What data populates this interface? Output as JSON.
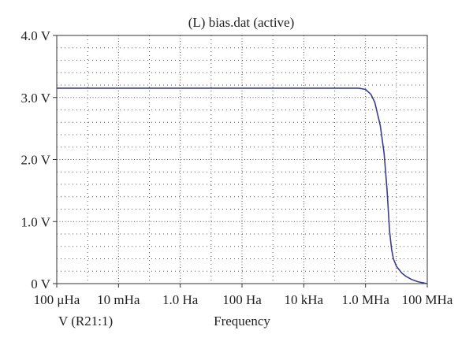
{
  "chart_data": {
    "type": "line",
    "title": "(L) bias.dat (active)",
    "xlabel": "Frequency",
    "ylabel": "",
    "trace_label": "V (R21:1)",
    "x_scale": "log",
    "x_unit": "Ha",
    "xlim": [
      0.0001,
      100000000
    ],
    "ylim": [
      0,
      4
    ],
    "x_ticks": [
      {
        "value": 0.0001,
        "label": "100 μHa"
      },
      {
        "value": 0.01,
        "label": "10 mHa"
      },
      {
        "value": 1,
        "label": "1.0 Ha"
      },
      {
        "value": 100,
        "label": "100 Ha"
      },
      {
        "value": 10000,
        "label": "10 kHa"
      },
      {
        "value": 1000000,
        "label": "1.0 MHa"
      },
      {
        "value": 100000000,
        "label": "100 MHa"
      }
    ],
    "y_ticks": [
      {
        "value": 0,
        "label": "0 V"
      },
      {
        "value": 1,
        "label": "1.0 V"
      },
      {
        "value": 2,
        "label": "2.0 V"
      },
      {
        "value": 3,
        "label": "3.0 V"
      },
      {
        "value": 4,
        "label": "4.0 V"
      }
    ],
    "grid": true,
    "grid_minor": true,
    "series": [
      {
        "name": "V (R21:1)",
        "color": "#3a3d8f",
        "points": [
          [
            0.0001,
            3.15
          ],
          [
            0.01,
            3.15
          ],
          [
            1,
            3.15
          ],
          [
            100,
            3.15
          ],
          [
            10000,
            3.15
          ],
          [
            100000,
            3.15
          ],
          [
            600000,
            3.15
          ],
          [
            1000000,
            3.13
          ],
          [
            1500000,
            3.05
          ],
          [
            2000000,
            2.92
          ],
          [
            3000000,
            2.55
          ],
          [
            4000000,
            2.1
          ],
          [
            5000000,
            1.5
          ],
          [
            6000000,
            0.85
          ],
          [
            7000000,
            0.55
          ],
          [
            8000000,
            0.4
          ],
          [
            10000000,
            0.28
          ],
          [
            15000000,
            0.17
          ],
          [
            20000000,
            0.12
          ],
          [
            30000000,
            0.07
          ],
          [
            50000000,
            0.03
          ],
          [
            100000000,
            0.0
          ]
        ]
      }
    ]
  }
}
